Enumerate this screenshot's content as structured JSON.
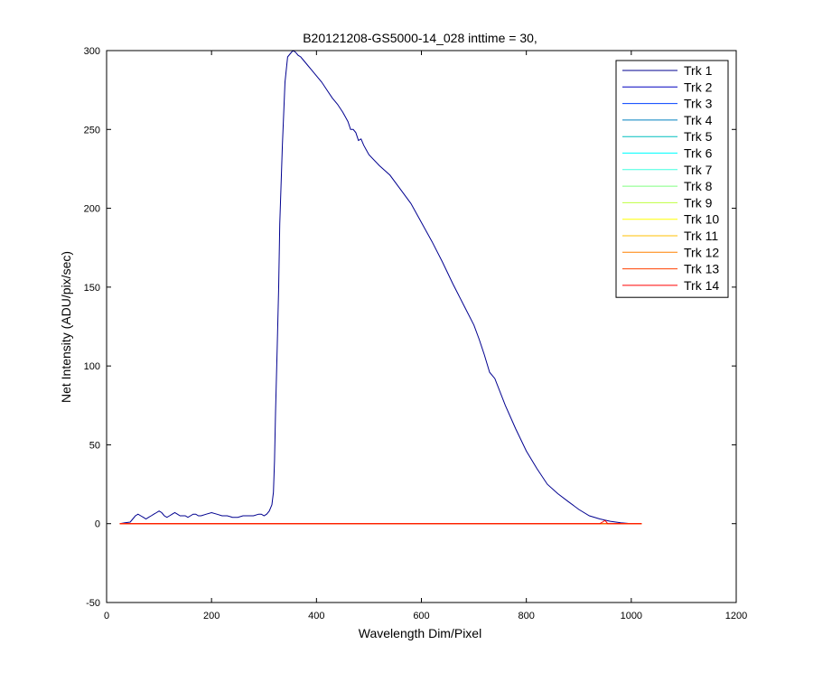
{
  "chart_data": {
    "type": "line",
    "title": "B20121208-GS5000-14_028 inttime = 30,",
    "xlabel": "Wavelength Dim/Pixel",
    "ylabel": "Net Intensity (ADU/pix/sec)",
    "xlim": [
      0,
      1200
    ],
    "ylim": [
      -50,
      300
    ],
    "xticks": [
      0,
      200,
      400,
      600,
      800,
      1000,
      1200
    ],
    "yticks": [
      -50,
      0,
      50,
      100,
      150,
      200,
      250,
      300
    ],
    "grid": false,
    "legend_position": "top-right",
    "series": [
      {
        "name": "Trk 1",
        "color": "#00008f",
        "x": [
          25,
          35,
          45,
          50,
          55,
          60,
          65,
          70,
          75,
          80,
          85,
          90,
          95,
          100,
          105,
          110,
          115,
          120,
          125,
          130,
          135,
          140,
          145,
          150,
          155,
          160,
          165,
          170,
          175,
          180,
          190,
          200,
          210,
          220,
          230,
          240,
          250,
          260,
          270,
          280,
          290,
          295,
          300,
          305,
          310,
          315,
          318,
          320,
          322,
          325,
          328,
          330,
          335,
          340,
          345,
          350,
          355,
          360,
          365,
          370,
          375,
          380,
          385,
          390,
          395,
          400,
          410,
          420,
          430,
          440,
          450,
          460,
          465,
          470,
          475,
          480,
          485,
          490,
          495,
          500,
          520,
          540,
          560,
          580,
          600,
          620,
          640,
          660,
          680,
          700,
          710,
          720,
          730,
          740,
          760,
          780,
          800,
          820,
          840,
          860,
          880,
          900,
          920,
          940,
          960,
          980,
          1000,
          1010
        ],
        "y": [
          0,
          0.5,
          1,
          3,
          5,
          6,
          5,
          4,
          3,
          4,
          5,
          6,
          7,
          8,
          7,
          5,
          4,
          5,
          6,
          7,
          6,
          5,
          5,
          5,
          4,
          5,
          6,
          6,
          5,
          5,
          6,
          7,
          6,
          5,
          5,
          4,
          4,
          5,
          5,
          5,
          6,
          6,
          5,
          6,
          8,
          12,
          20,
          40,
          70,
          110,
          150,
          190,
          240,
          280,
          296,
          298,
          300,
          299,
          297,
          296,
          294,
          292,
          290,
          288,
          286,
          284,
          280,
          275,
          270,
          266,
          261,
          255,
          250,
          250,
          248,
          243,
          244,
          240,
          237,
          234,
          227,
          221,
          212,
          203,
          191,
          179,
          166,
          152,
          139,
          126,
          117,
          107,
          96,
          92,
          75,
          60,
          46,
          35,
          25,
          19,
          14,
          9,
          5,
          3,
          1.5,
          0.5,
          0,
          0
        ]
      },
      {
        "name": "Trk 2",
        "color": "#0000bf",
        "x": [
          25,
          1020
        ],
        "y": [
          0,
          0
        ]
      },
      {
        "name": "Trk 3",
        "color": "#0040ff",
        "x": [
          25,
          1020
        ],
        "y": [
          0,
          0
        ]
      },
      {
        "name": "Trk 4",
        "color": "#0080bf",
        "x": [
          25,
          1020
        ],
        "y": [
          0,
          0
        ]
      },
      {
        "name": "Trk 5",
        "color": "#00bfbf",
        "x": [
          25,
          1020
        ],
        "y": [
          0,
          0
        ]
      },
      {
        "name": "Trk 6",
        "color": "#00ffff",
        "x": [
          25,
          1020
        ],
        "y": [
          0,
          0
        ]
      },
      {
        "name": "Trk 7",
        "color": "#40ffdf",
        "x": [
          25,
          1020
        ],
        "y": [
          0,
          0
        ]
      },
      {
        "name": "Trk 8",
        "color": "#80ff80",
        "x": [
          25,
          1020
        ],
        "y": [
          0,
          0
        ]
      },
      {
        "name": "Trk 9",
        "color": "#bfff40",
        "x": [
          25,
          1020
        ],
        "y": [
          0,
          0
        ]
      },
      {
        "name": "Trk 10",
        "color": "#ffff00",
        "x": [
          25,
          1020
        ],
        "y": [
          0,
          0
        ]
      },
      {
        "name": "Trk 11",
        "color": "#ffbf00",
        "x": [
          25,
          1020
        ],
        "y": [
          0,
          0
        ]
      },
      {
        "name": "Trk 12",
        "color": "#ff8000",
        "x": [
          25,
          1020
        ],
        "y": [
          0,
          0
        ]
      },
      {
        "name": "Trk 13",
        "color": "#ff4000",
        "x": [
          25,
          1020
        ],
        "y": [
          0,
          0
        ]
      },
      {
        "name": "Trk 14",
        "color": "#ff0000",
        "x": [
          25,
          940,
          945,
          950,
          955,
          1020
        ],
        "y": [
          0,
          0,
          1,
          2,
          0,
          0
        ]
      }
    ]
  }
}
